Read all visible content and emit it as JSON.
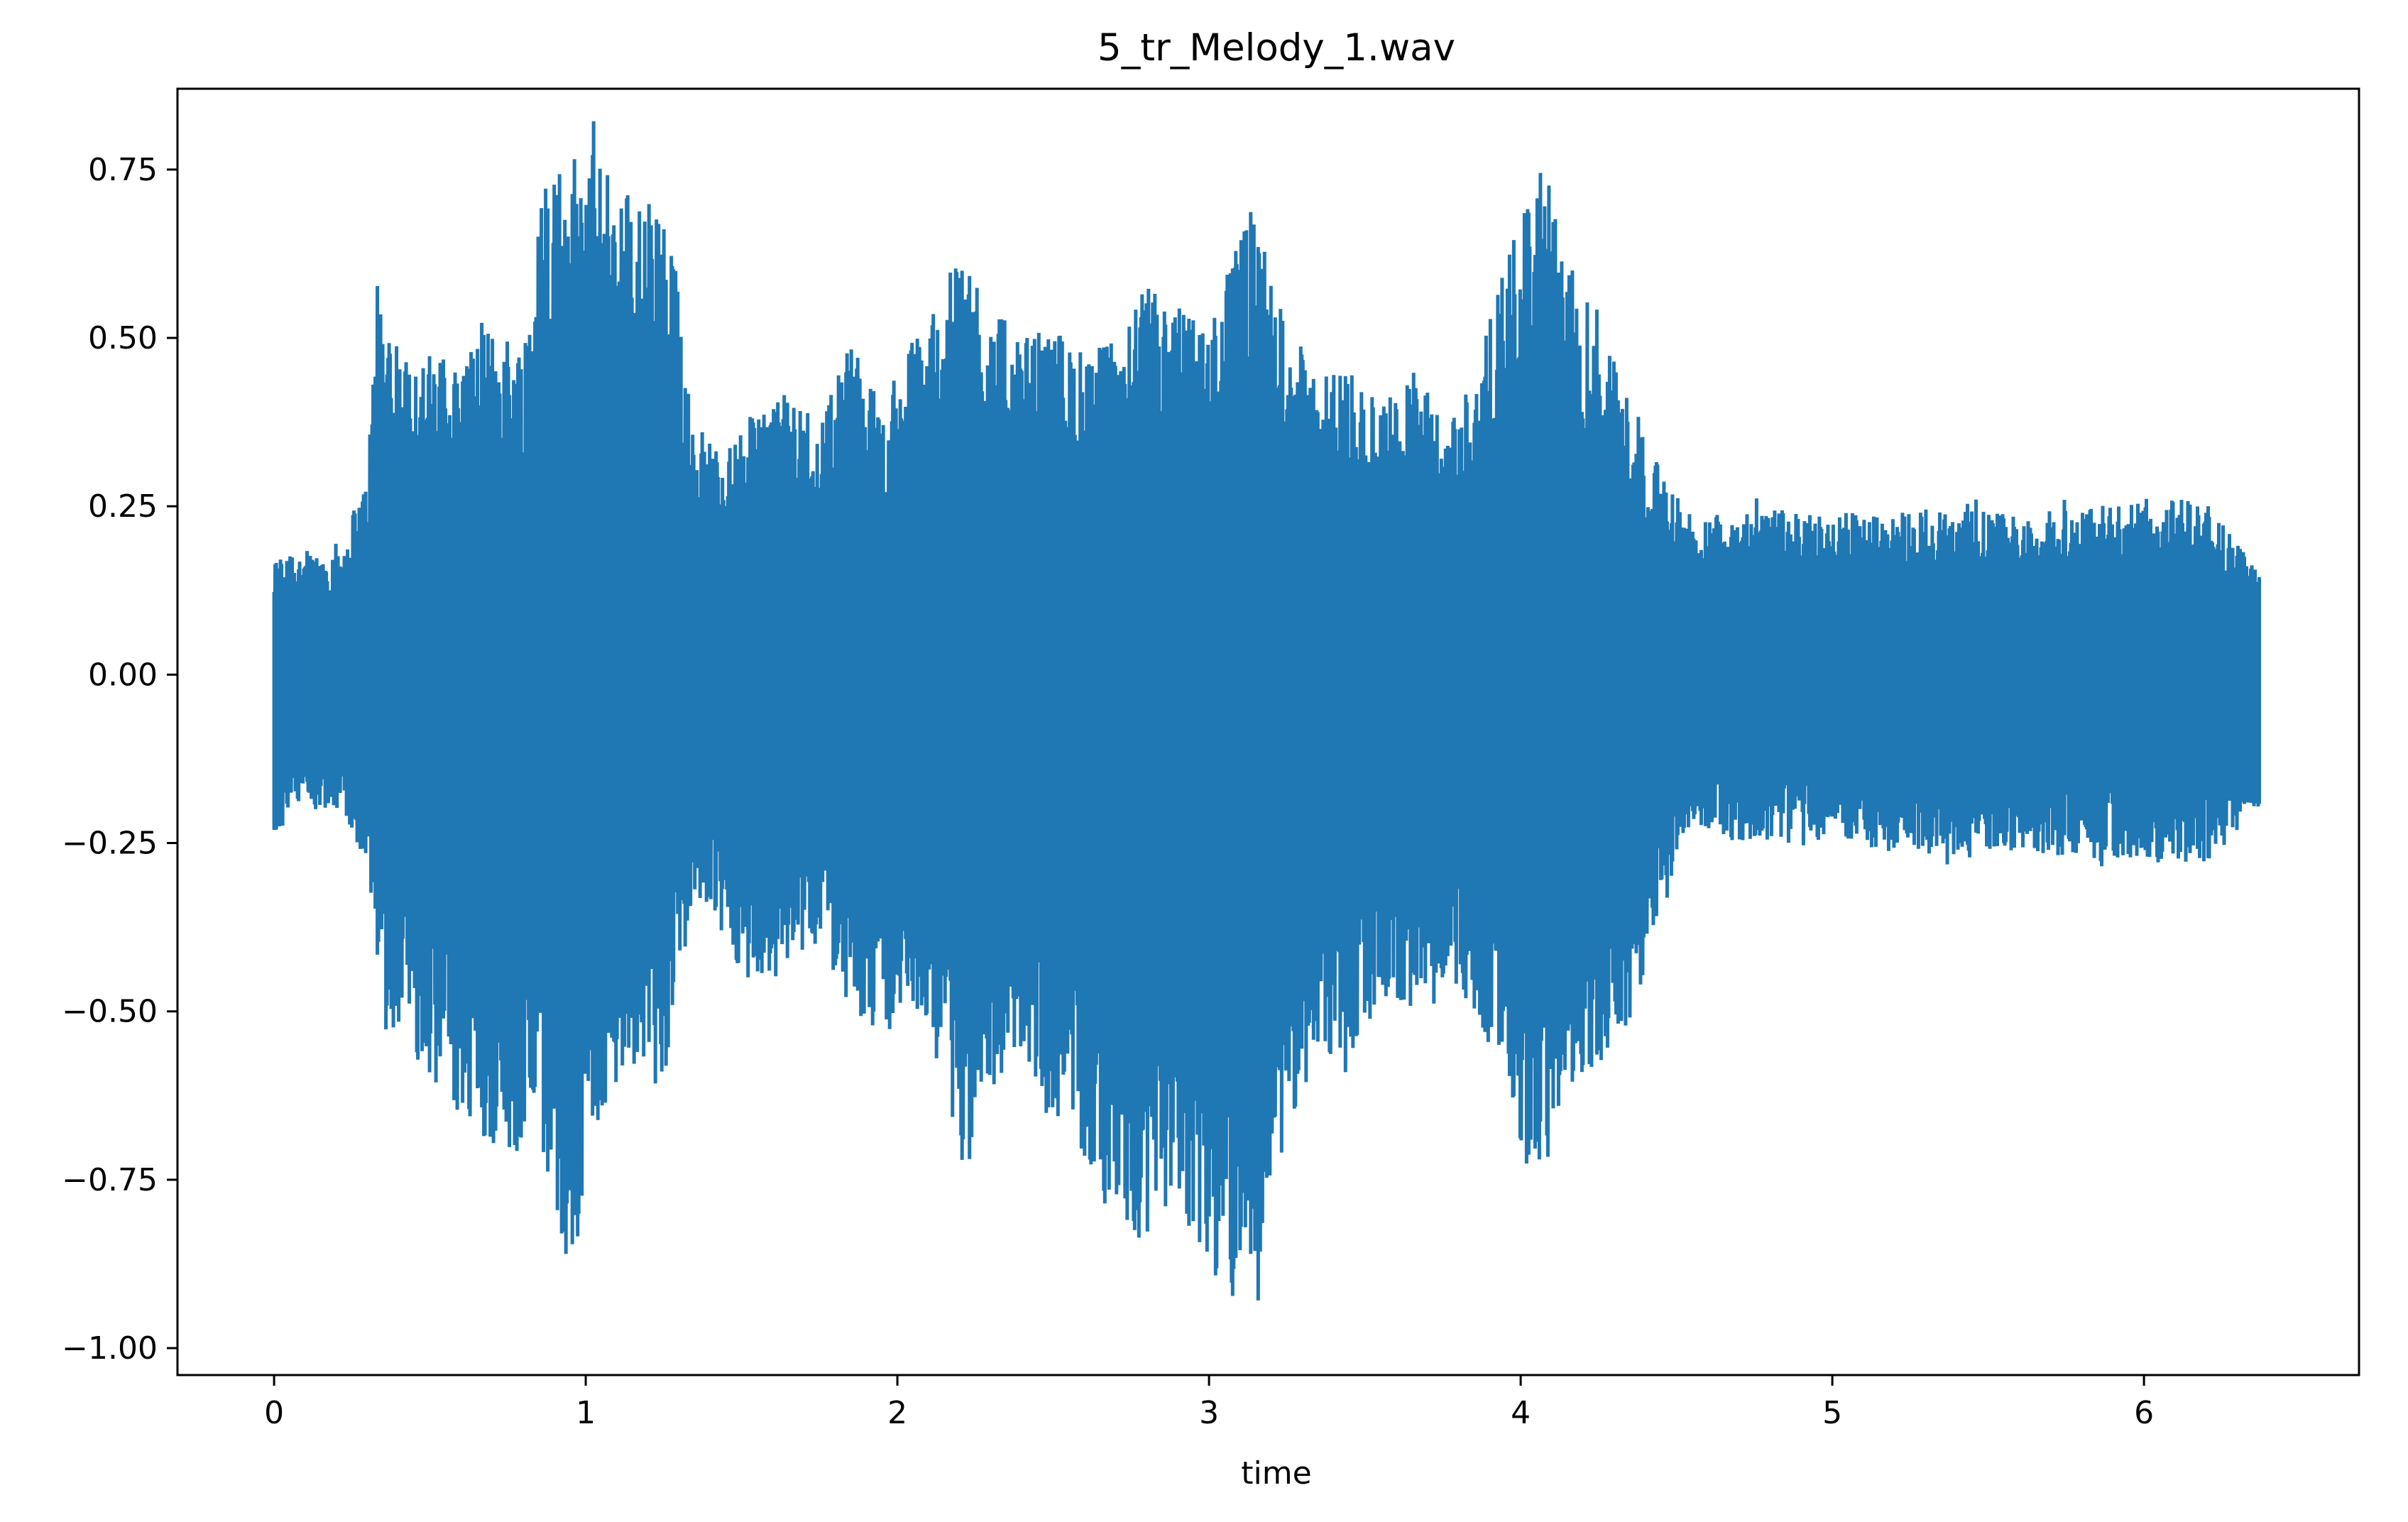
{
  "chart_data": {
    "type": "line",
    "title": "5_tr_Melody_1.wav",
    "xlabel": "time",
    "ylabel": "",
    "xlim": [
      -0.31,
      6.69
    ],
    "ylim": [
      -1.04,
      0.87
    ],
    "duration": 6.37,
    "grid": false,
    "legend": "none",
    "series_color": "#1f77b4",
    "xticks": [
      {
        "value": 0,
        "label": "0"
      },
      {
        "value": 1,
        "label": "1"
      },
      {
        "value": 2,
        "label": "2"
      },
      {
        "value": 3,
        "label": "3"
      },
      {
        "value": 4,
        "label": "4"
      },
      {
        "value": 5,
        "label": "5"
      },
      {
        "value": 6,
        "label": "6"
      }
    ],
    "yticks": [
      {
        "value": 0.75,
        "label": "0.75"
      },
      {
        "value": 0.5,
        "label": "0.50"
      },
      {
        "value": 0.25,
        "label": "0.25"
      },
      {
        "value": 0.0,
        "label": "0.00"
      },
      {
        "value": -0.25,
        "label": "−0.25"
      },
      {
        "value": -0.5,
        "label": "−0.50"
      },
      {
        "value": -0.75,
        "label": "−0.75"
      },
      {
        "value": -1.0,
        "label": "−1.00"
      }
    ],
    "series": [
      {
        "name": "",
        "envelope": {
          "t": [
            0.0,
            0.05,
            0.12,
            0.22,
            0.3,
            0.33,
            0.4,
            0.5,
            0.6,
            0.7,
            0.8,
            0.87,
            0.95,
            1.05,
            1.15,
            1.25,
            1.3,
            1.35,
            1.45,
            1.55,
            1.65,
            1.75,
            1.85,
            1.95,
            2.05,
            2.15,
            2.22,
            2.3,
            2.4,
            2.5,
            2.6,
            2.7,
            2.8,
            2.9,
            3.0,
            3.1,
            3.15,
            3.25,
            3.35,
            3.45,
            3.55,
            3.65,
            3.75,
            3.85,
            3.95,
            4.02,
            4.08,
            4.15,
            4.25,
            4.35,
            4.45,
            4.55,
            4.7,
            5.0,
            5.3,
            5.6,
            5.9,
            6.2,
            6.37
          ],
          "max": [
            0.17,
            0.2,
            0.18,
            0.2,
            0.3,
            0.58,
            0.48,
            0.48,
            0.47,
            0.52,
            0.5,
            0.77,
            0.78,
            0.77,
            0.72,
            0.7,
            0.58,
            0.38,
            0.33,
            0.4,
            0.42,
            0.38,
            0.5,
            0.4,
            0.5,
            0.58,
            0.65,
            0.55,
            0.5,
            0.52,
            0.48,
            0.5,
            0.58,
            0.55,
            0.52,
            0.66,
            0.68,
            0.52,
            0.45,
            0.46,
            0.4,
            0.46,
            0.38,
            0.45,
            0.6,
            0.72,
            0.75,
            0.6,
            0.55,
            0.42,
            0.3,
            0.24,
            0.25,
            0.24,
            0.25,
            0.24,
            0.26,
            0.26,
            0.15
          ],
          "min": [
            -0.27,
            -0.2,
            -0.2,
            -0.2,
            -0.3,
            -0.45,
            -0.55,
            -0.6,
            -0.68,
            -0.7,
            -0.72,
            -0.76,
            -0.89,
            -0.65,
            -0.6,
            -0.62,
            -0.42,
            -0.33,
            -0.4,
            -0.48,
            -0.42,
            -0.4,
            -0.5,
            -0.55,
            -0.5,
            -0.6,
            -0.75,
            -0.62,
            -0.55,
            -0.68,
            -0.72,
            -0.8,
            -0.85,
            -0.8,
            -0.88,
            -0.95,
            -0.95,
            -0.68,
            -0.56,
            -0.58,
            -0.48,
            -0.5,
            -0.45,
            -0.5,
            -0.6,
            -0.74,
            -0.75,
            -0.62,
            -0.58,
            -0.55,
            -0.34,
            -0.22,
            -0.25,
            -0.25,
            -0.27,
            -0.26,
            -0.28,
            -0.28,
            -0.2
          ]
        }
      }
    ]
  }
}
